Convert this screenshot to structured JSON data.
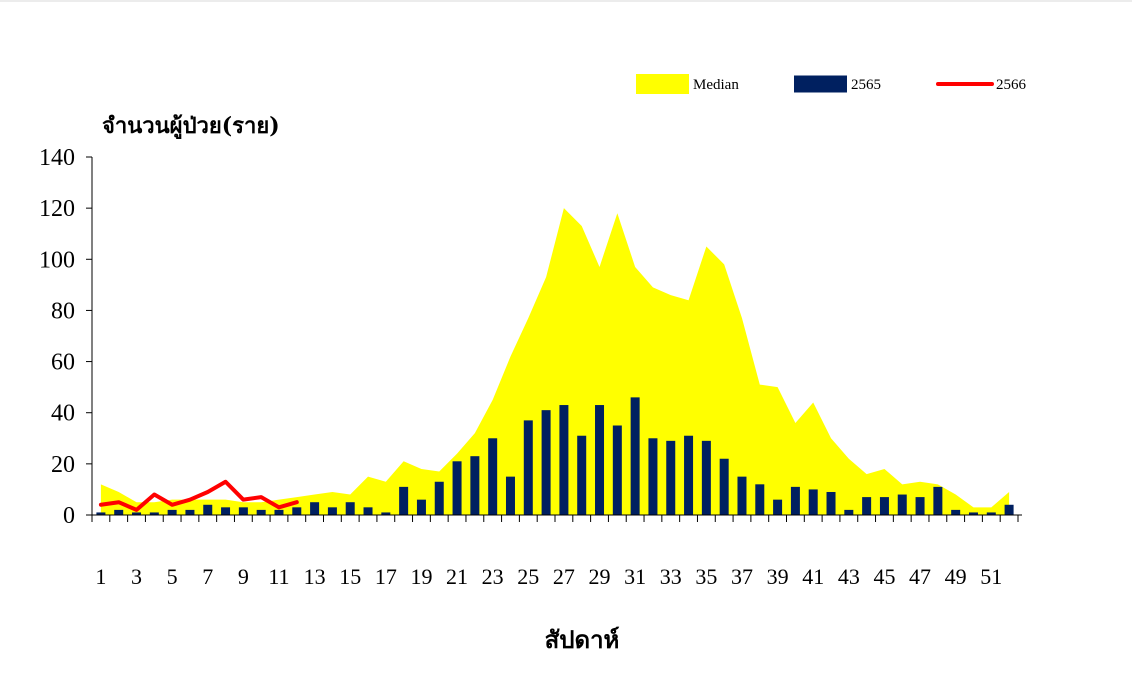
{
  "chart_data": {
    "type": "bar",
    "ylabel": "จำนวนผู้ป่วย(ราย)",
    "xlabel": "สัปดาห์",
    "ylim": [
      0,
      140
    ],
    "yticks": [
      0,
      20,
      40,
      60,
      80,
      100,
      120,
      140
    ],
    "weeks": [
      1,
      2,
      3,
      4,
      5,
      6,
      7,
      8,
      9,
      10,
      11,
      12,
      13,
      14,
      15,
      16,
      17,
      18,
      19,
      20,
      21,
      22,
      23,
      24,
      25,
      26,
      27,
      28,
      29,
      30,
      31,
      32,
      33,
      34,
      35,
      36,
      37,
      38,
      39,
      40,
      41,
      42,
      43,
      44,
      45,
      46,
      47,
      48,
      49,
      50,
      51,
      52
    ],
    "x_tick_labels": [
      "1",
      "3",
      "5",
      "7",
      "9",
      "11",
      "13",
      "15",
      "17",
      "19",
      "21",
      "23",
      "25",
      "27",
      "29",
      "31",
      "33",
      "35",
      "37",
      "39",
      "41",
      "43",
      "45",
      "47",
      "49",
      "51"
    ],
    "legend": {
      "position": "top-right"
    },
    "series": [
      {
        "name": "Median",
        "kind": "area",
        "color": "#FFFF00",
        "values": [
          12,
          9,
          5,
          5,
          6,
          6,
          6,
          6,
          5,
          5,
          6,
          7,
          8,
          9,
          8,
          15,
          13,
          21,
          18,
          17,
          24,
          32,
          45,
          62,
          77,
          93,
          120,
          113,
          97,
          118,
          97,
          89,
          86,
          84,
          105,
          98,
          77,
          51,
          50,
          36,
          44,
          30,
          22,
          16,
          18,
          12,
          13,
          12,
          8,
          3,
          3,
          9
        ]
      },
      {
        "name": "2565",
        "kind": "bar",
        "color": "#002060",
        "values": [
          1,
          2,
          1,
          1,
          2,
          2,
          4,
          3,
          3,
          2,
          2,
          3,
          5,
          3,
          5,
          3,
          1,
          11,
          6,
          13,
          21,
          23,
          30,
          15,
          37,
          41,
          43,
          31,
          43,
          35,
          46,
          30,
          29,
          31,
          29,
          22,
          15,
          12,
          6,
          11,
          10,
          9,
          2,
          7,
          7,
          8,
          7,
          11,
          2,
          1,
          1,
          4
        ]
      },
      {
        "name": "2566",
        "kind": "line",
        "color": "#FF0000",
        "values": [
          4,
          5,
          2,
          8,
          4,
          6,
          9,
          13,
          6,
          7,
          3,
          5
        ]
      }
    ]
  }
}
